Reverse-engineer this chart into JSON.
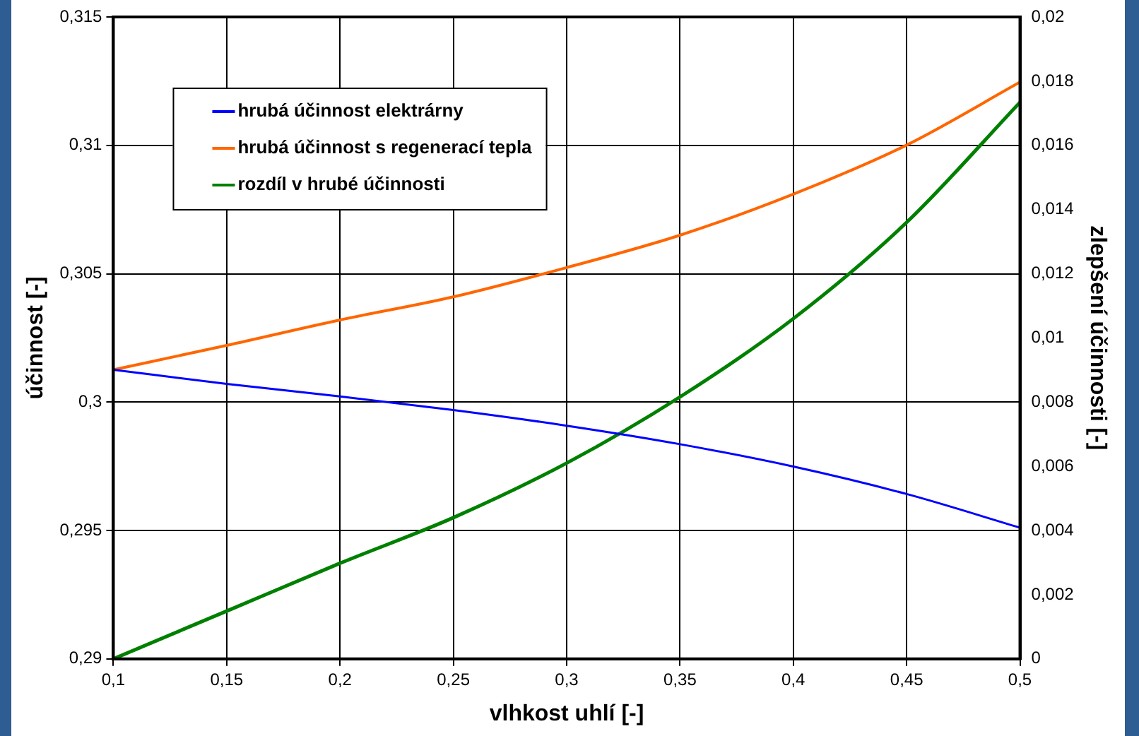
{
  "chart_data": {
    "type": "line",
    "xlabel": "vlhkost uhlí [-]",
    "ylabel": "účinnost [-]",
    "y2label": "zlepšení účinnosti [-]",
    "x": [
      0.1,
      0.15,
      0.2,
      0.25,
      0.3,
      0.35,
      0.4,
      0.45,
      0.5
    ],
    "xlim": [
      0.1,
      0.5
    ],
    "xticks": [
      {
        "value": 0.1,
        "label": "0,1"
      },
      {
        "value": 0.15,
        "label": "0,15"
      },
      {
        "value": 0.2,
        "label": "0,2"
      },
      {
        "value": 0.25,
        "label": "0,25"
      },
      {
        "value": 0.3,
        "label": "0,3"
      },
      {
        "value": 0.35,
        "label": "0,35"
      },
      {
        "value": 0.4,
        "label": "0,4"
      },
      {
        "value": 0.45,
        "label": "0,45"
      },
      {
        "value": 0.5,
        "label": "0,5"
      }
    ],
    "ylim": [
      0.29,
      0.315
    ],
    "yticks": [
      {
        "value": 0.29,
        "label": "0,29"
      },
      {
        "value": 0.295,
        "label": "0,295"
      },
      {
        "value": 0.3,
        "label": "0,3"
      },
      {
        "value": 0.305,
        "label": "0,305"
      },
      {
        "value": 0.31,
        "label": "0,31"
      },
      {
        "value": 0.315,
        "label": "0,315"
      }
    ],
    "y2lim": [
      0,
      0.02
    ],
    "y2ticks": [
      0,
      {
        "value": 0.002,
        "label": "0,002"
      },
      {
        "value": 0.004,
        "label": "0,004"
      },
      {
        "value": 0.006,
        "label": "0,006"
      },
      {
        "value": 0.008,
        "label": "0,008"
      },
      {
        "value": 0.01,
        "label": "0,01"
      },
      {
        "value": 0.012,
        "label": "0,012"
      },
      {
        "value": 0.014,
        "label": "0,014"
      },
      {
        "value": 0.016,
        "label": "0,016"
      },
      {
        "value": 0.018,
        "label": "0,018"
      },
      {
        "value": 0.02,
        "label": "0,02"
      }
    ],
    "series": [
      {
        "name": "hrubá účinnost elektrárny",
        "color": "#0000ff",
        "values": [
          0.30126,
          0.30071,
          0.30022,
          0.29969,
          0.29908,
          0.29836,
          0.29749,
          0.29642,
          0.29511
        ]
      },
      {
        "name": "hrubá účinnost s regenerací tepla",
        "color": "#ff6600",
        "values": [
          0.30126,
          0.30221,
          0.3032,
          0.3041,
          0.30524,
          0.3065,
          0.3081,
          0.31001,
          0.31246
        ]
      },
      {
        "name": "rozdíl v hrubé účinnosti",
        "color": "#008000",
        "axis": "y2",
        "values": [
          0,
          0.00149,
          0.00298,
          0.0044,
          0.0061,
          0.00816,
          0.0106,
          0.0136,
          0.01734
        ]
      }
    ],
    "grid": true,
    "legend": "top left",
    "marker": "none",
    "line_style": "solid"
  }
}
